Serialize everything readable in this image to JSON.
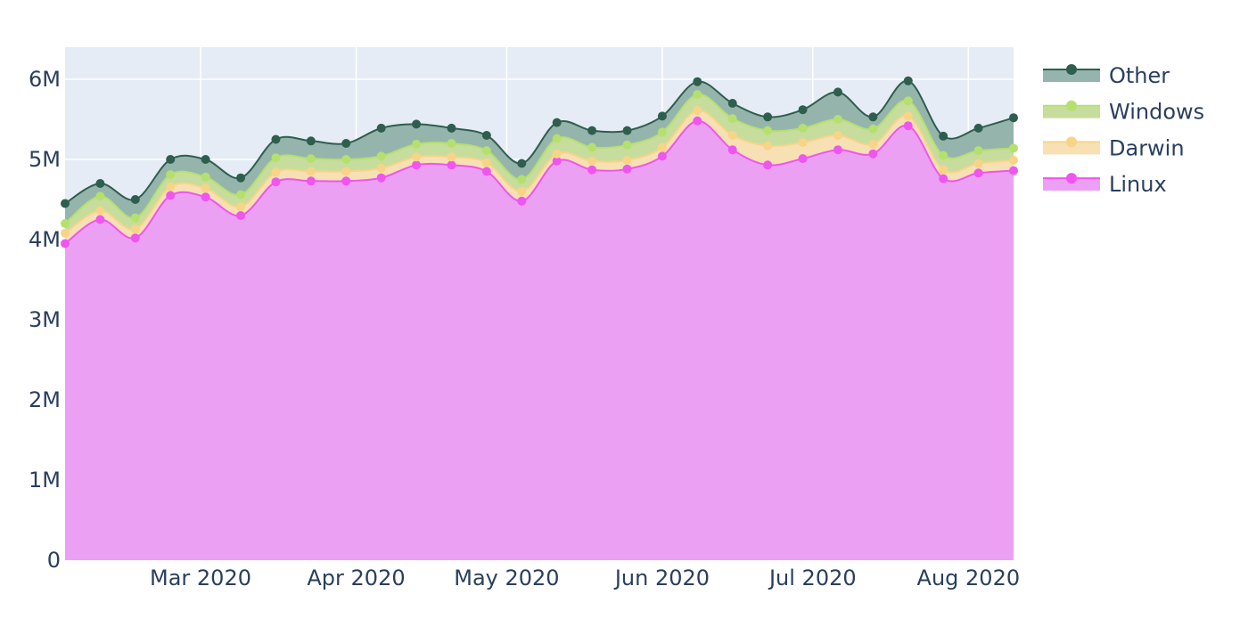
{
  "chart_data": {
    "type": "area",
    "stacked": true,
    "title": "",
    "xlabel": "",
    "ylabel": "",
    "x": [
      "2020-02-03",
      "2020-02-10",
      "2020-02-17",
      "2020-02-24",
      "2020-03-02",
      "2020-03-09",
      "2020-03-16",
      "2020-03-23",
      "2020-03-30",
      "2020-04-06",
      "2020-04-13",
      "2020-04-20",
      "2020-04-27",
      "2020-05-04",
      "2020-05-11",
      "2020-05-18",
      "2020-05-25",
      "2020-06-01",
      "2020-06-08",
      "2020-06-15",
      "2020-06-22",
      "2020-06-29",
      "2020-07-06",
      "2020-07-13",
      "2020-07-20",
      "2020-07-27",
      "2020-08-03",
      "2020-08-10"
    ],
    "xlim": [
      "2020-02-03",
      "2020-08-10"
    ],
    "ylim": [
      0,
      6400000
    ],
    "xticks": [
      {
        "date": "2020-03-01",
        "label": "Mar 2020"
      },
      {
        "date": "2020-04-01",
        "label": "Apr 2020"
      },
      {
        "date": "2020-05-01",
        "label": "May 2020"
      },
      {
        "date": "2020-06-01",
        "label": "Jun 2020"
      },
      {
        "date": "2020-07-01",
        "label": "Jul 2020"
      },
      {
        "date": "2020-08-01",
        "label": "Aug 2020"
      }
    ],
    "yticks": [
      {
        "value": 0,
        "label": "0"
      },
      {
        "value": 1000000,
        "label": "1M"
      },
      {
        "value": 2000000,
        "label": "2M"
      },
      {
        "value": 3000000,
        "label": "3M"
      },
      {
        "value": 4000000,
        "label": "4M"
      },
      {
        "value": 5000000,
        "label": "5M"
      },
      {
        "value": 6000000,
        "label": "6M"
      }
    ],
    "grid": true,
    "legend_position": "right",
    "series": [
      {
        "name": "Linux",
        "color": "#ef55f1",
        "fill": "#eba0f3",
        "values": [
          3950000,
          4250000,
          4020000,
          4550000,
          4530000,
          4300000,
          4720000,
          4730000,
          4730000,
          4770000,
          4930000,
          4930000,
          4850000,
          4480000,
          4980000,
          4870000,
          4880000,
          5040000,
          5480000,
          5120000,
          4930000,
          5010000,
          5120000,
          5070000,
          5420000,
          4760000,
          4830000,
          4860000
        ]
      },
      {
        "name": "Darwin",
        "color": "#f8d488",
        "fill": "#f7e0b4",
        "values": [
          130000,
          110000,
          110000,
          110000,
          110000,
          110000,
          120000,
          120000,
          120000,
          120000,
          100000,
          100000,
          110000,
          120000,
          90000,
          110000,
          110000,
          110000,
          130000,
          180000,
          240000,
          200000,
          180000,
          120000,
          120000,
          110000,
          120000,
          130000
        ]
      },
      {
        "name": "Windows",
        "color": "#b5e06e",
        "fill": "#c7dd9d",
        "values": [
          120000,
          180000,
          140000,
          150000,
          140000,
          150000,
          180000,
          160000,
          150000,
          150000,
          160000,
          170000,
          150000,
          150000,
          190000,
          170000,
          190000,
          190000,
          200000,
          210000,
          190000,
          180000,
          200000,
          190000,
          190000,
          180000,
          160000,
          150000
        ]
      },
      {
        "name": "Other",
        "color": "#2e5e4e",
        "fill": "#95b5ac",
        "values": [
          250000,
          160000,
          230000,
          190000,
          220000,
          210000,
          230000,
          220000,
          200000,
          350000,
          250000,
          190000,
          190000,
          200000,
          200000,
          210000,
          180000,
          200000,
          160000,
          190000,
          170000,
          230000,
          340000,
          150000,
          250000,
          240000,
          280000,
          380000
        ]
      }
    ]
  }
}
